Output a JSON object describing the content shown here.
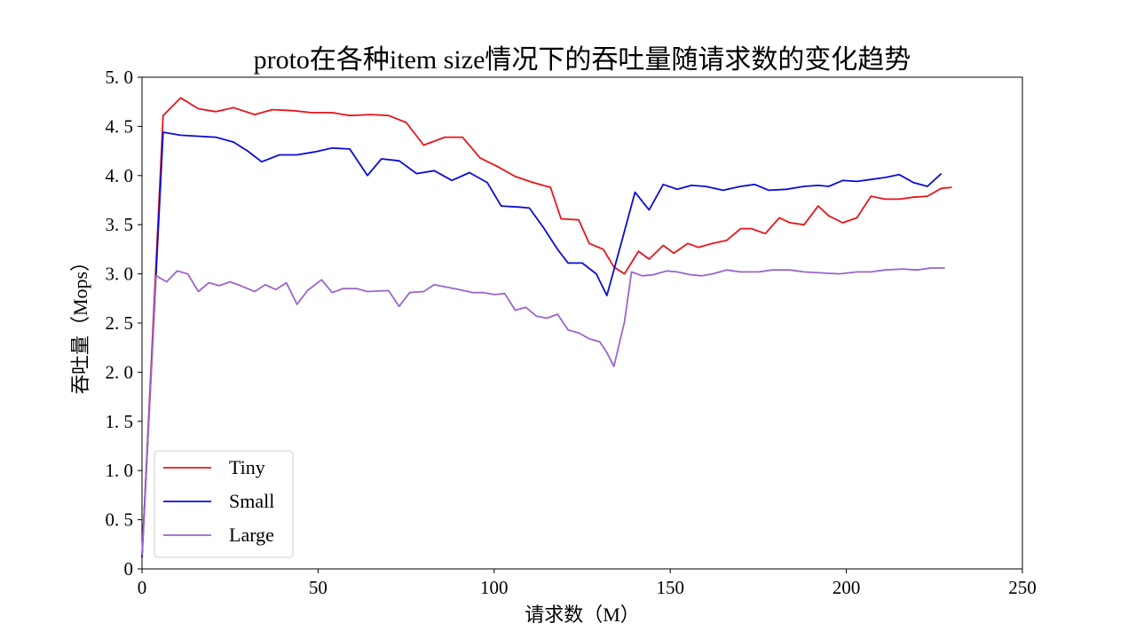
{
  "chart_data": {
    "type": "line",
    "title": "proto在各种item size情况下的吞吐量随请求数的变化趋势",
    "xlabel": "请求数（M）",
    "ylabel": "吞吐量（Mops）",
    "xlim": [
      0,
      250
    ],
    "ylim": [
      0,
      5
    ],
    "xticks": [
      0,
      50,
      100,
      150,
      200,
      250
    ],
    "yticks": [
      0,
      0.5,
      1.0,
      1.5,
      2.0,
      2.5,
      3.0,
      3.5,
      4.0,
      4.5,
      5.0
    ],
    "xtick_labels": [
      "0",
      "50",
      "100",
      "150",
      "200",
      "250"
    ],
    "ytick_labels": [
      "0",
      "0. 5",
      "1. 0",
      "1. 5",
      "2. 0",
      "2. 5",
      "3. 0",
      "3. 5",
      "4. 0",
      "4. 5",
      "5. 0"
    ],
    "grid": false,
    "legend_position": "lower-left",
    "series": [
      {
        "name": "Tiny",
        "color": "#e8141a",
        "points": [
          [
            0,
            0.12
          ],
          [
            6,
            4.61
          ],
          [
            11,
            4.79
          ],
          [
            16,
            4.68
          ],
          [
            21,
            4.65
          ],
          [
            26,
            4.69
          ],
          [
            32,
            4.62
          ],
          [
            37,
            4.67
          ],
          [
            43,
            4.66
          ],
          [
            48,
            4.64
          ],
          [
            54,
            4.64
          ],
          [
            59,
            4.61
          ],
          [
            65,
            4.62
          ],
          [
            70,
            4.61
          ],
          [
            75,
            4.54
          ],
          [
            80,
            4.31
          ],
          [
            86,
            4.39
          ],
          [
            91,
            4.39
          ],
          [
            96,
            4.18
          ],
          [
            101,
            4.09
          ],
          [
            106,
            3.99
          ],
          [
            111,
            3.93
          ],
          [
            116,
            3.88
          ],
          [
            119,
            3.56
          ],
          [
            124,
            3.55
          ],
          [
            127,
            3.31
          ],
          [
            131,
            3.25
          ],
          [
            134,
            3.07
          ],
          [
            137,
            3.0
          ],
          [
            141,
            3.23
          ],
          [
            144,
            3.15
          ],
          [
            148,
            3.29
          ],
          [
            151,
            3.21
          ],
          [
            155,
            3.31
          ],
          [
            158,
            3.27
          ],
          [
            162,
            3.31
          ],
          [
            166,
            3.34
          ],
          [
            170,
            3.46
          ],
          [
            173,
            3.46
          ],
          [
            177,
            3.41
          ],
          [
            181,
            3.57
          ],
          [
            184,
            3.52
          ],
          [
            188,
            3.5
          ],
          [
            192,
            3.69
          ],
          [
            195,
            3.59
          ],
          [
            199,
            3.52
          ],
          [
            203,
            3.57
          ],
          [
            207,
            3.79
          ],
          [
            211,
            3.76
          ],
          [
            215,
            3.76
          ],
          [
            219,
            3.78
          ],
          [
            223,
            3.79
          ],
          [
            227,
            3.87
          ],
          [
            230,
            3.88
          ]
        ]
      },
      {
        "name": "Small",
        "color": "#0b0bd8",
        "points": [
          [
            0,
            0.12
          ],
          [
            6,
            4.44
          ],
          [
            11,
            4.41
          ],
          [
            16,
            4.4
          ],
          [
            21,
            4.39
          ],
          [
            26,
            4.34
          ],
          [
            30,
            4.25
          ],
          [
            34,
            4.14
          ],
          [
            39,
            4.21
          ],
          [
            44,
            4.21
          ],
          [
            49,
            4.24
          ],
          [
            54,
            4.28
          ],
          [
            59,
            4.27
          ],
          [
            64,
            4.0
          ],
          [
            68,
            4.17
          ],
          [
            73,
            4.15
          ],
          [
            78,
            4.02
          ],
          [
            83,
            4.05
          ],
          [
            88,
            3.95
          ],
          [
            93,
            4.03
          ],
          [
            98,
            3.93
          ],
          [
            102,
            3.69
          ],
          [
            107,
            3.68
          ],
          [
            110,
            3.67
          ],
          [
            114,
            3.47
          ],
          [
            118,
            3.25
          ],
          [
            121,
            3.11
          ],
          [
            125,
            3.11
          ],
          [
            129,
            3.0
          ],
          [
            132,
            2.78
          ],
          [
            136,
            3.3
          ],
          [
            140,
            3.83
          ],
          [
            144,
            3.65
          ],
          [
            148,
            3.91
          ],
          [
            152,
            3.86
          ],
          [
            156,
            3.9
          ],
          [
            160,
            3.89
          ],
          [
            165,
            3.85
          ],
          [
            170,
            3.89
          ],
          [
            174,
            3.91
          ],
          [
            178,
            3.85
          ],
          [
            183,
            3.86
          ],
          [
            188,
            3.89
          ],
          [
            192,
            3.9
          ],
          [
            195,
            3.89
          ],
          [
            199,
            3.95
          ],
          [
            203,
            3.94
          ],
          [
            207,
            3.96
          ],
          [
            211,
            3.98
          ],
          [
            215,
            4.01
          ],
          [
            219,
            3.93
          ],
          [
            223,
            3.89
          ],
          [
            227,
            4.02
          ]
        ]
      },
      {
        "name": "Large",
        "color": "#9966cc",
        "points": [
          [
            0,
            0.14
          ],
          [
            4,
            2.98
          ],
          [
            7,
            2.92
          ],
          [
            10,
            3.03
          ],
          [
            13,
            3.0
          ],
          [
            16,
            2.82
          ],
          [
            19,
            2.91
          ],
          [
            22,
            2.88
          ],
          [
            25,
            2.92
          ],
          [
            28,
            2.88
          ],
          [
            32,
            2.82
          ],
          [
            35,
            2.89
          ],
          [
            38,
            2.84
          ],
          [
            41,
            2.91
          ],
          [
            44,
            2.69
          ],
          [
            47,
            2.83
          ],
          [
            51,
            2.94
          ],
          [
            54,
            2.81
          ],
          [
            57,
            2.85
          ],
          [
            61,
            2.85
          ],
          [
            64,
            2.82
          ],
          [
            70,
            2.83
          ],
          [
            73,
            2.67
          ],
          [
            76,
            2.81
          ],
          [
            80,
            2.82
          ],
          [
            83,
            2.89
          ],
          [
            90,
            2.84
          ],
          [
            94,
            2.81
          ],
          [
            97,
            2.81
          ],
          [
            100,
            2.79
          ],
          [
            103,
            2.8
          ],
          [
            106,
            2.63
          ],
          [
            109,
            2.66
          ],
          [
            112,
            2.57
          ],
          [
            115,
            2.55
          ],
          [
            118,
            2.59
          ],
          [
            121,
            2.43
          ],
          [
            124,
            2.4
          ],
          [
            127,
            2.34
          ],
          [
            130,
            2.31
          ],
          [
            132,
            2.2
          ],
          [
            134,
            2.06
          ],
          [
            137,
            2.51
          ],
          [
            139,
            3.02
          ],
          [
            142,
            2.98
          ],
          [
            145,
            2.99
          ],
          [
            149,
            3.03
          ],
          [
            152,
            3.02
          ],
          [
            156,
            2.99
          ],
          [
            159,
            2.98
          ],
          [
            162,
            3.0
          ],
          [
            166,
            3.04
          ],
          [
            170,
            3.02
          ],
          [
            175,
            3.02
          ],
          [
            179,
            3.04
          ],
          [
            184,
            3.04
          ],
          [
            188,
            3.02
          ],
          [
            193,
            3.01
          ],
          [
            198,
            3.0
          ],
          [
            203,
            3.02
          ],
          [
            207,
            3.02
          ],
          [
            211,
            3.04
          ],
          [
            216,
            3.05
          ],
          [
            220,
            3.04
          ],
          [
            224,
            3.06
          ],
          [
            228,
            3.06
          ]
        ]
      }
    ]
  }
}
